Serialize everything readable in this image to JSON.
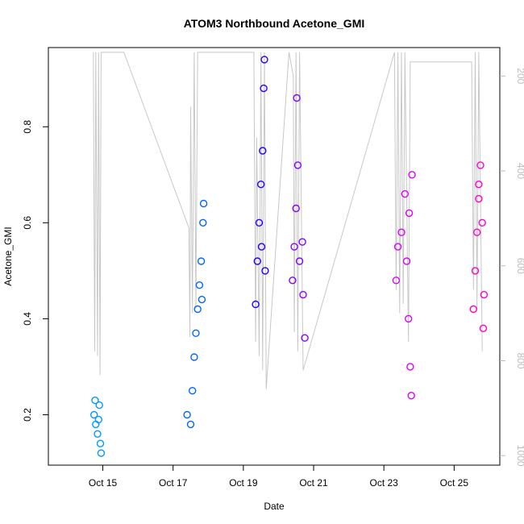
{
  "chart_data": {
    "type": "scatter",
    "title": "ATOM3 Northbound Acetone_GMI",
    "xlabel": "Date",
    "ylabel": "Acetone_GMI",
    "x_ticks": [
      "Oct 15",
      "Oct 17",
      "Oct 19",
      "Oct 21",
      "Oct 23",
      "Oct 25"
    ],
    "x_tick_days": [
      15,
      17,
      19,
      21,
      23,
      25
    ],
    "xlim_days": [
      13.45,
      26.3
    ],
    "ylim": [
      0.095,
      0.965
    ],
    "y_ticks": [
      0.2,
      0.4,
      0.6,
      0.8
    ],
    "y2_label": "",
    "y2_ticks": [
      200,
      400,
      600,
      800,
      1000
    ],
    "y2lim": [
      1020,
      140
    ],
    "series": [
      {
        "color": "#0099ff",
        "points": [
          [
            14.75,
            0.2
          ],
          [
            14.8,
            0.18
          ],
          [
            14.85,
            0.16
          ],
          [
            14.9,
            0.22
          ],
          [
            14.95,
            0.12
          ],
          [
            14.78,
            0.23
          ],
          [
            14.88,
            0.19
          ],
          [
            14.93,
            0.14
          ]
        ]
      },
      {
        "color": "#0066ff",
        "points": [
          [
            17.4,
            0.2
          ],
          [
            17.5,
            0.18
          ],
          [
            17.55,
            0.25
          ],
          [
            17.6,
            0.32
          ],
          [
            17.65,
            0.37
          ],
          [
            17.7,
            0.42
          ],
          [
            17.75,
            0.47
          ],
          [
            17.8,
            0.52
          ],
          [
            17.85,
            0.6
          ],
          [
            17.87,
            0.64
          ],
          [
            17.82,
            0.44
          ]
        ]
      },
      {
        "color": "#2200ff",
        "points": [
          [
            19.35,
            0.43
          ],
          [
            19.4,
            0.52
          ],
          [
            19.45,
            0.6
          ],
          [
            19.5,
            0.68
          ],
          [
            19.55,
            0.75
          ],
          [
            19.58,
            0.88
          ],
          [
            19.6,
            0.94
          ],
          [
            19.52,
            0.55
          ],
          [
            19.62,
            0.5
          ]
        ]
      },
      {
        "color": "#8800ff",
        "points": [
          [
            20.4,
            0.48
          ],
          [
            20.45,
            0.55
          ],
          [
            20.5,
            0.63
          ],
          [
            20.55,
            0.72
          ],
          [
            20.52,
            0.86
          ],
          [
            20.6,
            0.52
          ],
          [
            20.7,
            0.45
          ],
          [
            20.75,
            0.36
          ],
          [
            20.68,
            0.56
          ]
        ]
      },
      {
        "color": "#dd00ff",
        "points": [
          [
            23.35,
            0.48
          ],
          [
            23.4,
            0.55
          ],
          [
            23.5,
            0.58
          ],
          [
            23.6,
            0.66
          ],
          [
            23.65,
            0.52
          ],
          [
            23.7,
            0.4
          ],
          [
            23.75,
            0.3
          ],
          [
            23.78,
            0.24
          ],
          [
            23.8,
            0.7
          ],
          [
            23.72,
            0.62
          ]
        ]
      },
      {
        "color": "#ff00cc",
        "points": [
          [
            25.55,
            0.42
          ],
          [
            25.6,
            0.5
          ],
          [
            25.65,
            0.58
          ],
          [
            25.7,
            0.65
          ],
          [
            25.75,
            0.72
          ],
          [
            25.8,
            0.6
          ],
          [
            25.85,
            0.45
          ],
          [
            25.83,
            0.38
          ],
          [
            25.7,
            0.68
          ]
        ]
      }
    ],
    "altitude_series": {
      "color": "#c8c8c8",
      "points": [
        [
          14.73,
          150
        ],
        [
          14.75,
          510
        ],
        [
          14.77,
          780
        ],
        [
          14.8,
          150
        ],
        [
          14.85,
          790
        ],
        [
          14.88,
          150
        ],
        [
          14.92,
          830
        ],
        [
          14.95,
          150
        ],
        [
          15.6,
          150
        ],
        [
          17.45,
          520
        ],
        [
          17.48,
          750
        ],
        [
          17.5,
          265
        ],
        [
          17.55,
          700
        ],
        [
          17.6,
          150
        ],
        [
          17.65,
          690
        ],
        [
          17.7,
          150
        ],
        [
          19.3,
          150
        ],
        [
          19.35,
          760
        ],
        [
          19.38,
          330
        ],
        [
          19.45,
          790
        ],
        [
          19.5,
          150
        ],
        [
          19.55,
          820
        ],
        [
          19.6,
          150
        ],
        [
          19.65,
          860
        ],
        [
          20.3,
          150
        ],
        [
          20.42,
          200
        ],
        [
          20.45,
          740
        ],
        [
          20.5,
          150
        ],
        [
          20.55,
          780
        ],
        [
          20.6,
          150
        ],
        [
          20.7,
          820
        ],
        [
          23.3,
          150
        ],
        [
          23.35,
          650
        ],
        [
          23.4,
          150
        ],
        [
          23.45,
          700
        ],
        [
          23.5,
          150
        ],
        [
          23.55,
          680
        ],
        [
          23.6,
          150
        ],
        [
          23.7,
          760
        ],
        [
          23.75,
          170
        ],
        [
          25.5,
          170
        ],
        [
          25.55,
          650
        ],
        [
          25.6,
          150
        ],
        [
          25.65,
          690
        ],
        [
          25.7,
          150
        ],
        [
          25.8,
          780
        ]
      ]
    }
  }
}
